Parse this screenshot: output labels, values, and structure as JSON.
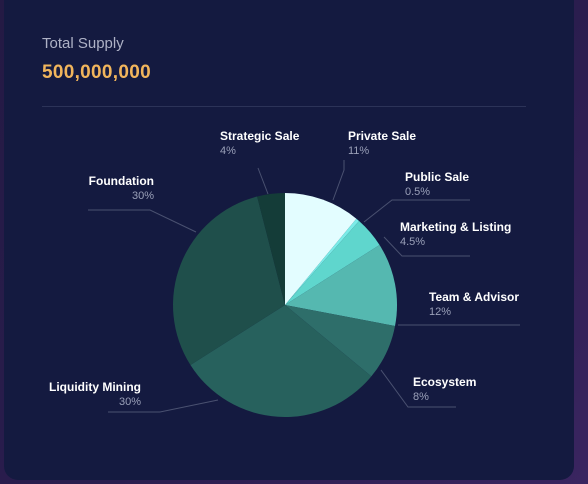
{
  "supply": {
    "label": "Total Supply",
    "value": "500,000,000"
  },
  "chart_data": {
    "type": "pie",
    "categories": [
      "Private Sale",
      "Public Sale",
      "Marketing & Listing",
      "Team & Advisor",
      "Ecosystem",
      "Liquidity Mining",
      "Foundation",
      "Strategic Sale"
    ],
    "values": [
      11,
      0.5,
      4.5,
      12,
      8,
      30,
      30,
      4
    ],
    "labels": [
      "11%",
      "0.5%",
      "4.5%",
      "12%",
      "8%",
      "30%",
      "30%",
      "4%"
    ],
    "colors": [
      "#e3fdff",
      "#7aece8",
      "#5fd6cd",
      "#55b8b0",
      "#2e6e6a",
      "#27615d",
      "#1f4f4b",
      "#143c38"
    ]
  }
}
